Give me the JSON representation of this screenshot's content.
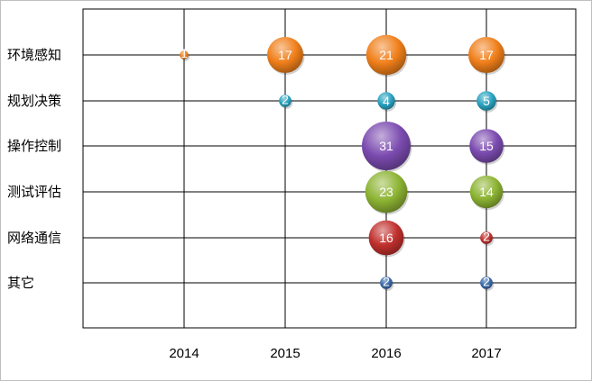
{
  "chart_data": {
    "type": "bubble",
    "title": "",
    "xlabel": "",
    "ylabel": "",
    "grid": true,
    "legend": "none",
    "x": [
      "2014",
      "2015",
      "2016",
      "2017"
    ],
    "categories": [
      "环境感知",
      "规划决策",
      "操作控制",
      "测试评估",
      "网络通信",
      "其它"
    ],
    "series": [
      {
        "color": "#f07f1a",
        "points": [
          {
            "x": "2014",
            "value": 1
          },
          {
            "x": "2015",
            "value": 17
          },
          {
            "x": "2016",
            "value": 21
          },
          {
            "x": "2017",
            "value": 17
          }
        ]
      },
      {
        "color": "#2aa3c1",
        "points": [
          {
            "x": "2015",
            "value": 2
          },
          {
            "x": "2016",
            "value": 4
          },
          {
            "x": "2017",
            "value": 5
          }
        ]
      },
      {
        "color": "#7b4bb0",
        "points": [
          {
            "x": "2016",
            "value": 31
          },
          {
            "x": "2017",
            "value": 15
          }
        ]
      },
      {
        "color": "#8db433",
        "points": [
          {
            "x": "2016",
            "value": 23
          },
          {
            "x": "2017",
            "value": 14
          }
        ]
      },
      {
        "color": "#c0302d",
        "points": [
          {
            "x": "2016",
            "value": 16
          },
          {
            "x": "2017",
            "value": 2
          }
        ]
      },
      {
        "color": "#3a6aab",
        "points": [
          {
            "x": "2016",
            "value": 2
          },
          {
            "x": "2017",
            "value": 2
          }
        ]
      }
    ]
  }
}
